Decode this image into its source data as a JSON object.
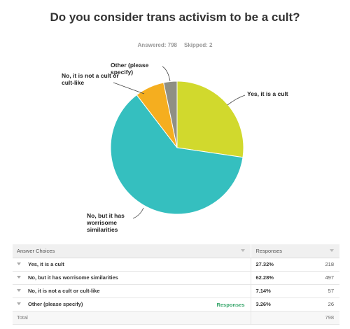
{
  "question": {
    "title": "Do you consider trans activism to be a cult?",
    "answered_label": "Answered: 798",
    "skipped_label": "Skipped: 2"
  },
  "chart_data": {
    "type": "pie",
    "title": "Do you consider trans activism to be a cult?",
    "slices": [
      {
        "label": "Yes, it is a cult",
        "pct": 27.32,
        "color": "#d1d92d"
      },
      {
        "label": "No, but it has worrisome similarities",
        "pct": 62.28,
        "color": "#35bfbf"
      },
      {
        "label": "No, it is not a cult or cult-like",
        "pct": 7.14,
        "color": "#f5ae1f"
      },
      {
        "label": "Other (please specify)",
        "pct": 3.26,
        "color": "#8f8f84"
      }
    ],
    "start_angle_deg": 0,
    "direction": "clockwise"
  },
  "pie_labels": {
    "yes": "Yes, it is a cult",
    "worrisome": "No, but it has worrisome similarities",
    "not_cult": "No, it is not a cult or cult-like",
    "other": "Other (please specify)"
  },
  "table": {
    "header_choices": "Answer Choices",
    "header_responses": "Responses",
    "rows": [
      {
        "choice": "Yes, it is a cult",
        "pct": "27.32%",
        "count": "218",
        "link": ""
      },
      {
        "choice": "No, but it has worrisome similarities",
        "pct": "62.28%",
        "count": "497",
        "link": ""
      },
      {
        "choice": "No, it is not a cult or cult-like",
        "pct": "7.14%",
        "count": "57",
        "link": ""
      },
      {
        "choice": "Other (please specify)",
        "pct": "3.26%",
        "count": "26",
        "link": "Responses"
      }
    ],
    "total_label": "Total",
    "total_count": "798"
  }
}
